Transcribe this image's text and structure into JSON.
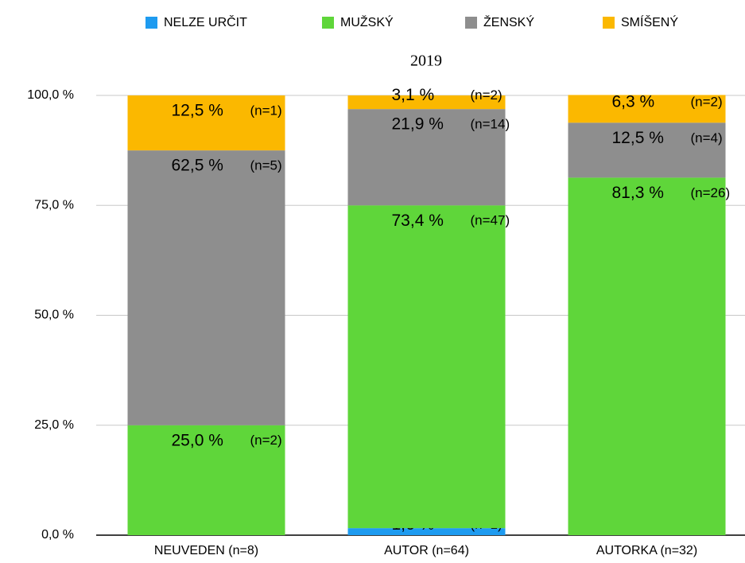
{
  "chart_data": {
    "type": "stacked_bar",
    "title": "2019",
    "categories": [
      "NEUVEDEN (n=8)",
      "AUTOR (n=64)",
      "AUTORKA (n=32)"
    ],
    "series": [
      {
        "name": "NELZE URČIT",
        "color": "#1e9bf0",
        "values": [
          null,
          1.6,
          null
        ],
        "value_labels": [
          null,
          "1,6 %",
          null
        ],
        "counts": [
          null,
          1,
          null
        ],
        "count_labels": [
          null,
          "(n=1)",
          null
        ]
      },
      {
        "name": "MUŽSKÝ",
        "color": "#5fd63a",
        "values": [
          25,
          73.4,
          81.3
        ],
        "value_labels": [
          "25,0 %",
          "73,4 %",
          "81,3 %"
        ],
        "counts": [
          2,
          47,
          26
        ],
        "count_labels": [
          "(n=2)",
          "(n=47)",
          "(n=26)"
        ]
      },
      {
        "name": "ŽENSKÝ",
        "color": "#8e8e8e",
        "values": [
          62.5,
          21.9,
          12.5
        ],
        "value_labels": [
          "62,5 %",
          "21,9 %",
          "12,5 %"
        ],
        "counts": [
          5,
          14,
          4
        ],
        "count_labels": [
          "(n=5)",
          "(n=14)",
          "(n=4)"
        ]
      },
      {
        "name": "SMÍŠENÝ",
        "color": "#fbb800",
        "values": [
          12.5,
          3.1,
          6.3
        ],
        "value_labels": [
          "12,5 %",
          "3,1 %",
          "6,3 %"
        ],
        "counts": [
          1,
          2,
          2
        ],
        "count_labels": [
          "(n=1)",
          "(n=2)",
          "(n=2)"
        ]
      }
    ],
    "ylim": [
      0,
      100
    ],
    "yticks": [
      {
        "value": 0,
        "label": "0,0 %"
      },
      {
        "value": 25,
        "label": "25,0 %"
      },
      {
        "value": 50,
        "label": "50,0 %"
      },
      {
        "value": 75,
        "label": "75,0 %"
      },
      {
        "value": 100,
        "label": "100,0 %"
      }
    ],
    "grid": true,
    "legend": "top"
  }
}
